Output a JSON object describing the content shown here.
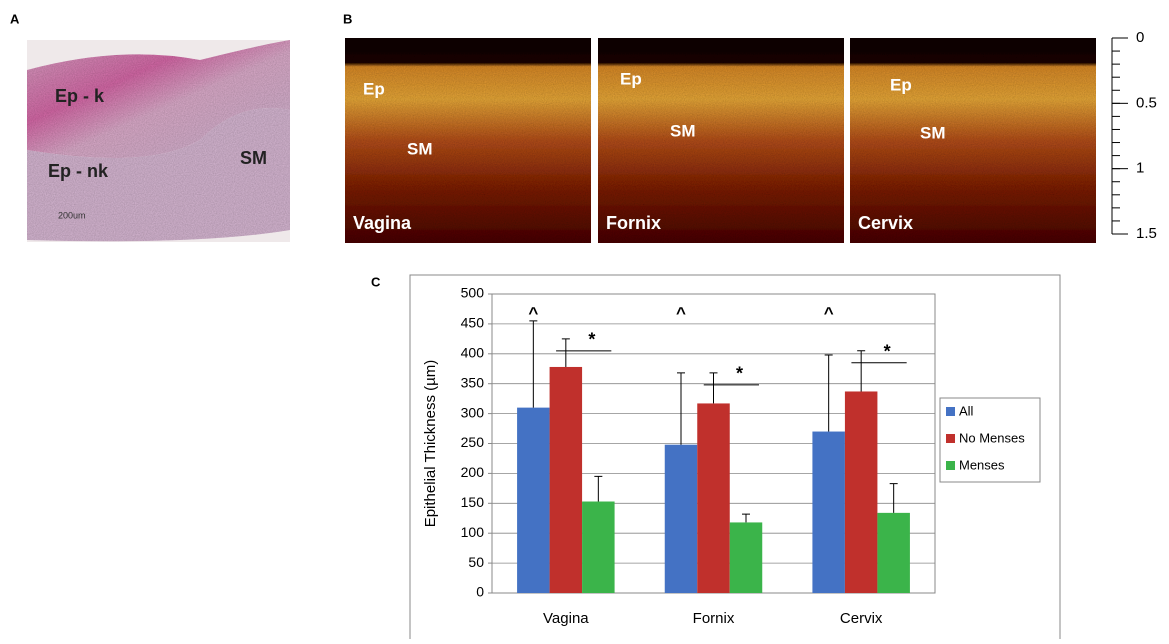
{
  "panel_a": {
    "label": "A",
    "annotations": [
      "Ep - k",
      "Ep - nk",
      "SM",
      "200um"
    ]
  },
  "panel_b": {
    "label": "B",
    "images": [
      {
        "name": "Vagina",
        "labels": [
          "Ep",
          "SM"
        ]
      },
      {
        "name": "Fornix",
        "labels": [
          "Ep",
          "SM"
        ]
      },
      {
        "name": "Cervix",
        "labels": [
          "Ep",
          "SM"
        ]
      }
    ],
    "depth_scale": {
      "ylim": [
        0,
        1.5
      ],
      "yticks": [
        0,
        0.5,
        1,
        1.5
      ]
    }
  },
  "panel_c_label": "C",
  "chart_data": {
    "type": "bar",
    "y_label": "Epithelial Thickness (µm)",
    "categories": [
      "Vagina",
      "Fornix",
      "Cervix"
    ],
    "series": [
      {
        "name": "All",
        "color": "#4472c4",
        "values": [
          310,
          248,
          270
        ],
        "errors": [
          145,
          120,
          128
        ]
      },
      {
        "name": "No Menses",
        "color": "#c0302c",
        "values": [
          378,
          317,
          337
        ],
        "errors": [
          47,
          51,
          68
        ]
      },
      {
        "name": "Menses",
        "color": "#3bb44a",
        "values": [
          153,
          118,
          134
        ],
        "errors": [
          42,
          14,
          49
        ]
      }
    ],
    "annotations": [
      "^",
      "*"
    ],
    "ylim": [
      0,
      500
    ],
    "yticks": [
      0,
      50,
      100,
      150,
      200,
      250,
      300,
      350,
      400,
      450,
      500
    ],
    "grid": true,
    "legend": "right"
  }
}
